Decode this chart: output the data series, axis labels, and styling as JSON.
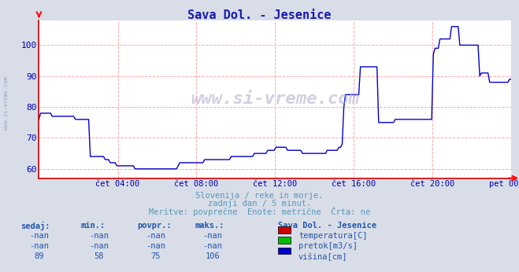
{
  "title": "Sava Dol. - Jesenice",
  "title_color": "#1a1aaa",
  "bg_color": "#d8dde8",
  "plot_bg_color": "#ffffff",
  "line_color": "#0000cc",
  "grid_color_major": "#ffaaaa",
  "ylim": [
    57,
    108
  ],
  "yticks": [
    60,
    70,
    80,
    90,
    100
  ],
  "tick_color": "#0000aa",
  "watermark": "www.si-vreme.com",
  "subtitle1": "Slovenija / reke in morje.",
  "subtitle2": "zadnji dan / 5 minut.",
  "subtitle3": "Meritve: povprečne  Enote: metrične  Črta: ne",
  "subtitle_color": "#5599bb",
  "table_headers": [
    "sedaj:",
    "min.:",
    "povpr.:",
    "maks.:"
  ],
  "table_rows": [
    [
      "-nan",
      "-nan",
      "-nan",
      "-nan"
    ],
    [
      "-nan",
      "-nan",
      "-nan",
      "-nan"
    ],
    [
      "89",
      "58",
      "75",
      "106"
    ]
  ],
  "legend_title": "Sava Dol. - Jesenice",
  "legend_items": [
    "temperatura[C]",
    "pretok[m3/s]",
    "višina[cm]"
  ],
  "legend_colors": [
    "#cc0000",
    "#00bb00",
    "#0000cc"
  ],
  "x_tick_labels": [
    "čet 04:00",
    "čet 08:00",
    "čet 12:00",
    "čet 16:00",
    "čet 20:00",
    "pet 00:00"
  ],
  "x_tick_positions": [
    0.167,
    0.333,
    0.5,
    0.667,
    0.833,
    1.0
  ],
  "vishina_data": [
    76,
    78,
    78,
    78,
    78,
    78,
    78,
    78,
    77,
    77,
    77,
    77,
    77,
    77,
    77,
    77,
    77,
    77,
    77,
    77,
    77,
    77,
    76,
    76,
    76,
    76,
    76,
    76,
    76,
    76,
    76,
    64,
    64,
    64,
    64,
    64,
    64,
    64,
    64,
    64,
    63,
    63,
    63,
    62,
    62,
    62,
    62,
    61,
    61,
    61,
    61,
    61,
    61,
    61,
    61,
    61,
    61,
    61,
    60,
    60,
    60,
    60,
    60,
    60,
    60,
    60,
    60,
    60,
    60,
    60,
    60,
    60,
    60,
    60,
    60,
    60,
    60,
    60,
    60,
    60,
    60,
    60,
    60,
    60,
    61,
    62,
    62,
    62,
    62,
    62,
    62,
    62,
    62,
    62,
    62,
    62,
    62,
    62,
    62,
    62,
    63,
    63,
    63,
    63,
    63,
    63,
    63,
    63,
    63,
    63,
    63,
    63,
    63,
    63,
    63,
    63,
    64,
    64,
    64,
    64,
    64,
    64,
    64,
    64,
    64,
    64,
    64,
    64,
    64,
    64,
    65,
    65,
    65,
    65,
    65,
    65,
    65,
    65,
    66,
    66,
    66,
    66,
    66,
    67,
    67,
    67,
    67,
    67,
    67,
    67,
    66,
    66,
    66,
    66,
    66,
    66,
    66,
    66,
    66,
    65,
    65,
    65,
    65,
    65,
    65,
    65,
    65,
    65,
    65,
    65,
    65,
    65,
    65,
    65,
    66,
    66,
    66,
    66,
    66,
    66,
    66,
    67,
    67,
    68,
    80,
    84,
    84,
    84,
    84,
    84,
    84,
    84,
    84,
    84,
    93,
    93,
    93,
    93,
    93,
    93,
    93,
    93,
    93,
    93,
    93,
    75,
    75,
    75,
    75,
    75,
    75,
    75,
    75,
    75,
    75,
    76,
    76,
    76,
    76,
    76,
    76,
    76,
    76,
    76,
    76,
    76,
    76,
    76,
    76,
    76,
    76,
    76,
    76,
    76,
    76,
    76,
    76,
    76,
    97,
    99,
    99,
    99,
    102,
    102,
    102,
    102,
    102,
    102,
    102,
    106,
    106,
    106,
    106,
    106,
    100,
    100,
    100,
    100,
    100,
    100,
    100,
    100,
    100,
    100,
    100,
    100,
    90,
    91,
    91,
    91,
    91,
    91,
    88,
    88,
    88,
    88,
    88,
    88,
    88,
    88,
    88,
    88,
    88,
    88,
    89,
    89
  ]
}
